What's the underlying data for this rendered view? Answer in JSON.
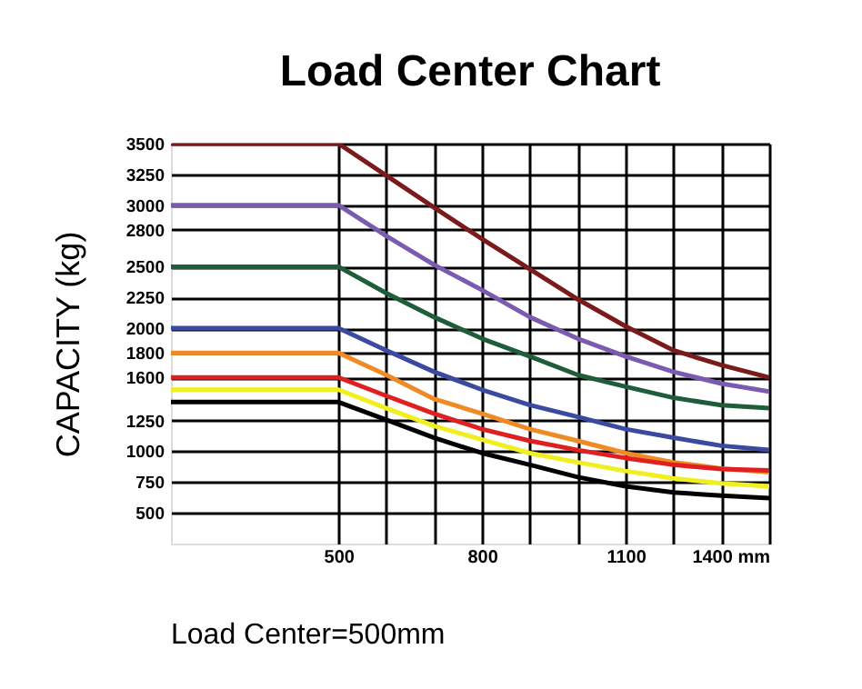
{
  "chart_data": {
    "type": "line",
    "title": "Load Center Chart",
    "ylabel": "CAPACITY (kg)",
    "x": [
      150,
      500,
      600,
      700,
      800,
      900,
      1000,
      1100,
      1200,
      1300,
      1400
    ],
    "xlim": [
      150,
      1400
    ],
    "xticks": [
      500,
      {
        "value": 600,
        "label": null
      },
      {
        "value": 700,
        "label": null
      },
      800,
      {
        "value": 900,
        "label": null
      },
      {
        "value": 1000,
        "label": null
      },
      1100,
      {
        "value": 1200,
        "label": null
      },
      {
        "value": 1300,
        "label": null
      },
      {
        "value": 1400,
        "label": "1400 mm"
      }
    ],
    "ylim": [
      250,
      3500
    ],
    "yticks": [
      500,
      750,
      1000,
      1250,
      1600,
      1800,
      2000,
      2250,
      2500,
      2800,
      3000,
      3250,
      3500
    ],
    "series": [
      {
        "color": "#7b1a1a",
        "values": [
          3500,
          3500,
          3240,
          2980,
          2725,
          2480,
          2235,
          2015,
          1820,
          1700,
          1600
        ]
      },
      {
        "color": "#7a5bb0",
        "values": [
          3000,
          3000,
          2750,
          2515,
          2310,
          2090,
          1915,
          1770,
          1645,
          1550,
          1485
        ]
      },
      {
        "color": "#1f5c3a",
        "values": [
          2500,
          2500,
          2285,
          2090,
          1915,
          1770,
          1620,
          1525,
          1435,
          1375,
          1350
        ]
      },
      {
        "color": "#3a4aa0",
        "values": [
          2000,
          2000,
          1820,
          1645,
          1500,
          1375,
          1280,
          1180,
          1110,
          1045,
          1010
        ]
      },
      {
        "color": "#f08a24",
        "values": [
          1800,
          1800,
          1620,
          1425,
          1305,
          1180,
          1085,
          985,
          910,
          860,
          830
        ]
      },
      {
        "color": "#e02020",
        "values": [
          1600,
          1600,
          1450,
          1305,
          1180,
          1085,
          1010,
          945,
          890,
          855,
          845
        ]
      },
      {
        "color": "#f0f020",
        "values": [
          1500,
          1500,
          1350,
          1205,
          1095,
          985,
          910,
          840,
          780,
          740,
          715
        ]
      },
      {
        "color": "#000000",
        "values": [
          1400,
          1400,
          1255,
          1110,
          985,
          890,
          790,
          715,
          665,
          640,
          620
        ]
      }
    ],
    "grid": true,
    "marker": "none",
    "line_style": "solid",
    "annotations": [
      "Load Center=500mm"
    ]
  }
}
